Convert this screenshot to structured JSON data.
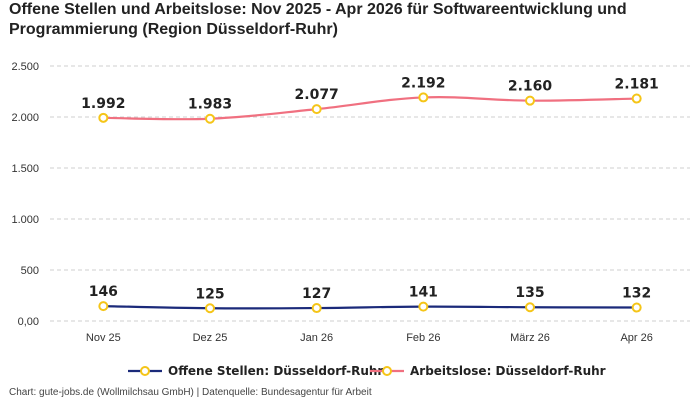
{
  "title": "Offene Stellen und Arbeitslose: Nov 2025 - Apr 2026 für Softwareentwicklung und Programmierung (Region Düsseldorf-Ruhr)",
  "source": "Chart: gute-jobs.de (Wollmilchsau GmbH) | Datenquelle: Bundesagentur für Arbeit",
  "chart_data": {
    "type": "line",
    "categories": [
      "Nov 25",
      "Dez 25",
      "Jan 26",
      "Feb 26",
      "März 26",
      "Apr 26"
    ],
    "ylim": [
      0,
      2500
    ],
    "yticks": [
      {
        "value": 0,
        "label": "0,00"
      },
      {
        "value": 500,
        "label": "500"
      },
      {
        "value": 1000,
        "label": "1.000"
      },
      {
        "value": 1500,
        "label": "1.500"
      },
      {
        "value": 2000,
        "label": "2.000"
      },
      {
        "value": 2500,
        "label": "2.500"
      }
    ],
    "grid": true,
    "legend_position": "bottom",
    "series": [
      {
        "name": "Offene Stellen: Düsseldorf-Ruhr",
        "color": "#1b2a7a",
        "values": [
          146,
          125,
          127,
          141,
          135,
          132
        ],
        "labels": [
          "146",
          "125",
          "127",
          "141",
          "135",
          "132"
        ]
      },
      {
        "name": "Arbeitslose: Düsseldorf-Ruhr",
        "color": "#f07080",
        "values": [
          1992,
          1983,
          2077,
          2192,
          2160,
          2181
        ],
        "labels": [
          "1.992",
          "1.983",
          "2.077",
          "2.192",
          "2.160",
          "2.181"
        ]
      }
    ],
    "marker_color": "#f5c518"
  }
}
